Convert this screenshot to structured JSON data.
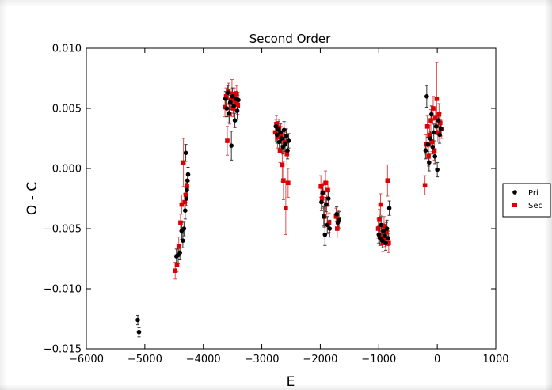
{
  "chart_data": {
    "type": "scatter",
    "title": "Second Order",
    "xlabel": "E",
    "ylabel": "O - C",
    "xlim": [
      -6000,
      1000
    ],
    "ylim": [
      -0.015,
      0.01
    ],
    "xticks": [
      "−6000",
      "−5000",
      "−4000",
      "−3000",
      "−2000",
      "−1000",
      "0",
      "1000"
    ],
    "xtick_values": [
      -6000,
      -5000,
      -4000,
      -3000,
      -2000,
      -1000,
      0,
      1000
    ],
    "yticks": [
      "−0.015",
      "−0.010",
      "−0.005",
      "0.000",
      "0.005",
      "0.010"
    ],
    "ytick_values": [
      -0.015,
      -0.01,
      -0.005,
      0.0,
      0.005,
      0.01
    ],
    "grid": false,
    "legend_placement": "outside-right",
    "series": [
      {
        "name": "Pri",
        "color": "#000000",
        "marker": "circle",
        "points": [
          [
            -5120,
            -0.0126,
            0.0004
          ],
          [
            -5100,
            -0.0136,
            0.0004
          ],
          [
            -4460,
            -0.0073,
            0.0006
          ],
          [
            -4430,
            -0.0072,
            0.0007
          ],
          [
            -4400,
            -0.007,
            0.0006
          ],
          [
            -4370,
            -0.0052,
            0.0007
          ],
          [
            -4350,
            -0.006,
            0.0006
          ],
          [
            -4330,
            -0.005,
            0.0006
          ],
          [
            -4310,
            -0.0035,
            0.0007
          ],
          [
            -4300,
            0.0013,
            0.0007
          ],
          [
            -4290,
            -0.0025,
            0.0006
          ],
          [
            -4280,
            -0.0018,
            0.0006
          ],
          [
            -4270,
            -0.001,
            0.0005
          ],
          [
            -4260,
            -0.0005,
            0.0006
          ],
          [
            -3620,
            0.0058,
            0.0006
          ],
          [
            -3600,
            0.005,
            0.0007
          ],
          [
            -3580,
            0.0063,
            0.0006
          ],
          [
            -3560,
            0.0046,
            0.0008
          ],
          [
            -3540,
            0.0055,
            0.0006
          ],
          [
            -3520,
            0.0019,
            0.0012
          ],
          [
            -3500,
            0.006,
            0.0007
          ],
          [
            -3480,
            0.0052,
            0.0006
          ],
          [
            -3460,
            0.004,
            0.0006
          ],
          [
            -3440,
            0.0058,
            0.0006
          ],
          [
            -3420,
            0.0048,
            0.0007
          ],
          [
            -3400,
            0.0057,
            0.0006
          ],
          [
            -2760,
            0.0035,
            0.0006
          ],
          [
            -2740,
            0.0028,
            0.0007
          ],
          [
            -2720,
            0.0033,
            0.0006
          ],
          [
            -2700,
            0.0022,
            0.0006
          ],
          [
            -2680,
            0.003,
            0.0007
          ],
          [
            -2660,
            0.0025,
            0.0006
          ],
          [
            -2640,
            0.0018,
            0.0006
          ],
          [
            -2620,
            0.0032,
            0.0007
          ],
          [
            -2600,
            0.002,
            0.0006
          ],
          [
            -2580,
            0.0027,
            0.0006
          ],
          [
            -2560,
            0.0015,
            0.0007
          ],
          [
            -2540,
            0.0023,
            0.0006
          ],
          [
            -1980,
            -0.0028,
            0.0007
          ],
          [
            -1960,
            -0.002,
            0.0006
          ],
          [
            -1940,
            -0.004,
            0.0008
          ],
          [
            -1920,
            -0.0055,
            0.0009
          ],
          [
            -1900,
            -0.003,
            0.0006
          ],
          [
            -1880,
            -0.0047,
            0.0007
          ],
          [
            -1860,
            -0.0025,
            0.0006
          ],
          [
            -1840,
            -0.005,
            0.0007
          ],
          [
            -1720,
            -0.0038,
            0.0006
          ],
          [
            -1700,
            -0.0045,
            0.0006
          ],
          [
            -1680,
            -0.0043,
            0.0007
          ],
          [
            -1000,
            -0.0055,
            0.0007
          ],
          [
            -980,
            -0.0058,
            0.0006
          ],
          [
            -960,
            -0.0047,
            0.0007
          ],
          [
            -940,
            -0.006,
            0.0006
          ],
          [
            -920,
            -0.0052,
            0.0006
          ],
          [
            -900,
            -0.0056,
            0.0007
          ],
          [
            -880,
            -0.0062,
            0.0006
          ],
          [
            -860,
            -0.005,
            0.0007
          ],
          [
            -840,
            -0.0058,
            0.0006
          ],
          [
            -820,
            -0.0033,
            0.0006
          ],
          [
            -200,
            0.0015,
            0.0007
          ],
          [
            -180,
            0.006,
            0.0009
          ],
          [
            -160,
            0.002,
            0.0006
          ],
          [
            -140,
            0.0005,
            0.0007
          ],
          [
            -120,
            0.0025,
            0.0006
          ],
          [
            -100,
            0.0045,
            0.0007
          ],
          [
            -80,
            0.0018,
            0.0006
          ],
          [
            -60,
            0.003,
            0.0007
          ],
          [
            -40,
            0.001,
            0.0006
          ],
          [
            -20,
            0.0035,
            0.0006
          ],
          [
            0,
            -0.0001,
            0.0006
          ],
          [
            20,
            0.004,
            0.0006
          ],
          [
            40,
            0.0028,
            0.0007
          ],
          [
            60,
            0.0033,
            0.0006
          ]
        ]
      },
      {
        "name": "Sec",
        "color": "#dd0000",
        "marker": "square",
        "points": [
          [
            -4480,
            -0.0085,
            0.0007
          ],
          [
            -4450,
            -0.008,
            0.0006
          ],
          [
            -4420,
            -0.0065,
            0.0008
          ],
          [
            -4390,
            -0.0045,
            0.0007
          ],
          [
            -4370,
            -0.003,
            0.0008
          ],
          [
            -4340,
            0.0005,
            0.002
          ],
          [
            -4320,
            -0.0028,
            0.0007
          ],
          [
            -4300,
            -0.0022,
            0.0006
          ],
          [
            -4280,
            -0.0015,
            0.0006
          ],
          [
            -3630,
            0.0051,
            0.0008
          ],
          [
            -3610,
            0.006,
            0.0007
          ],
          [
            -3590,
            0.0023,
            0.0012
          ],
          [
            -3570,
            0.0064,
            0.0007
          ],
          [
            -3550,
            0.0045,
            0.0008
          ],
          [
            -3530,
            0.0057,
            0.0007
          ],
          [
            -3510,
            0.0062,
            0.0012
          ],
          [
            -3490,
            0.005,
            0.0007
          ],
          [
            -3470,
            0.0059,
            0.0008
          ],
          [
            -3450,
            0.0055,
            0.0007
          ],
          [
            -3430,
            0.0062,
            0.0007
          ],
          [
            -3410,
            0.0053,
            0.0008
          ],
          [
            -2770,
            0.003,
            0.0008
          ],
          [
            -2750,
            0.0037,
            0.0007
          ],
          [
            -2730,
            0.0026,
            0.0009
          ],
          [
            -2710,
            0.0034,
            0.0007
          ],
          [
            -2690,
            0.0015,
            0.001
          ],
          [
            -2670,
            0.0028,
            0.0007
          ],
          [
            -2650,
            0.0003,
            0.0014
          ],
          [
            -2630,
            -0.001,
            0.0016
          ],
          [
            -2610,
            0.0022,
            0.0008
          ],
          [
            -2590,
            -0.0033,
            0.0022
          ],
          [
            -2570,
            0.0012,
            0.0009
          ],
          [
            -2550,
            -0.0012,
            0.0012
          ],
          [
            -1990,
            -0.0015,
            0.0009
          ],
          [
            -1970,
            -0.0025,
            0.0008
          ],
          [
            -1950,
            -0.002,
            0.0008
          ],
          [
            -1930,
            -0.004,
            0.0009
          ],
          [
            -1910,
            -0.0012,
            0.001
          ],
          [
            -1890,
            -0.003,
            0.0008
          ],
          [
            -1870,
            -0.0018,
            0.0007
          ],
          [
            -1850,
            -0.0045,
            0.0008
          ],
          [
            -1730,
            -0.004,
            0.0007
          ],
          [
            -1710,
            -0.005,
            0.0007
          ],
          [
            -1690,
            -0.0042,
            0.0007
          ],
          [
            -1010,
            -0.005,
            0.0008
          ],
          [
            -990,
            -0.0042,
            0.0008
          ],
          [
            -970,
            -0.003,
            0.0009
          ],
          [
            -950,
            -0.0055,
            0.0008
          ],
          [
            -930,
            -0.0062,
            0.0007
          ],
          [
            -910,
            -0.0048,
            0.0008
          ],
          [
            -890,
            -0.0058,
            0.0007
          ],
          [
            -870,
            -0.0053,
            0.0008
          ],
          [
            -850,
            -0.001,
            0.0013
          ],
          [
            -830,
            -0.0062,
            0.0008
          ],
          [
            -210,
            -0.0014,
            0.0008
          ],
          [
            -190,
            0.002,
            0.0008
          ],
          [
            -170,
            0.0035,
            0.0009
          ],
          [
            -150,
            0.001,
            0.0008
          ],
          [
            -130,
            0.0028,
            0.0008
          ],
          [
            -110,
            0.004,
            0.0009
          ],
          [
            -90,
            0.0022,
            0.0008
          ],
          [
            -70,
            0.005,
            0.001
          ],
          [
            -50,
            0.0015,
            0.0008
          ],
          [
            -30,
            0.0042,
            0.0008
          ],
          [
            -10,
            0.0058,
            0.003
          ],
          [
            10,
            0.003,
            0.0008
          ],
          [
            30,
            0.0045,
            0.0009
          ],
          [
            50,
            0.0038,
            0.0008
          ],
          [
            70,
            0.0033,
            0.0008
          ]
        ]
      }
    ]
  }
}
